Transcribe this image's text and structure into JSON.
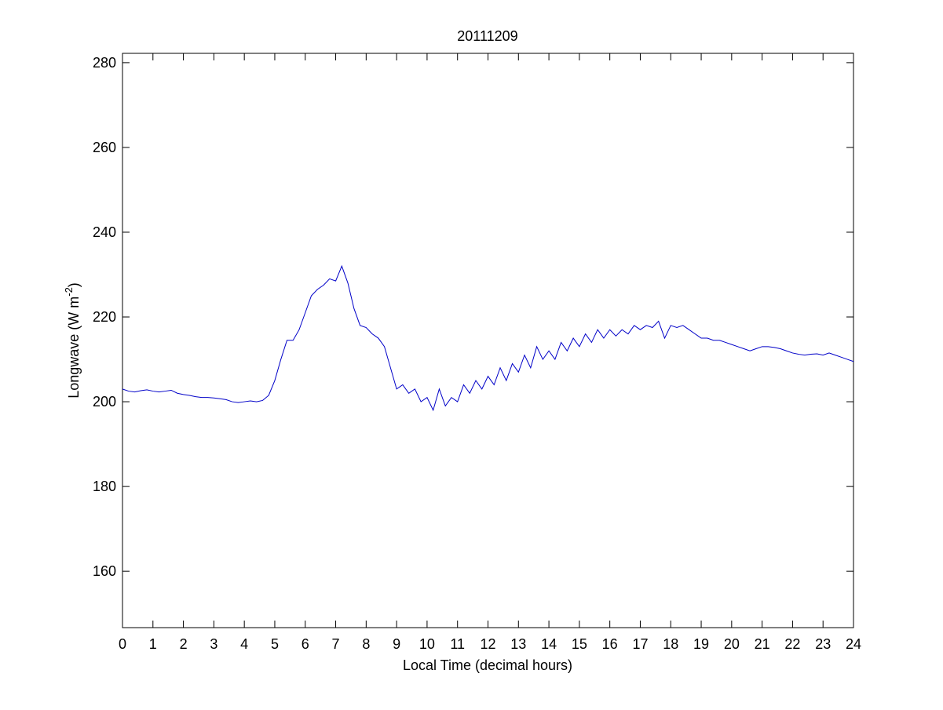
{
  "chart_data": {
    "type": "line",
    "title": "20111209",
    "xlabel": "Local Time (decimal hours)",
    "ylabel": [
      "Longwave (W m",
      "-2",
      ")"
    ],
    "x": [
      0,
      0.2,
      0.4,
      0.6,
      0.8,
      1,
      1.2,
      1.4,
      1.6,
      1.8,
      2,
      2.2,
      2.4,
      2.6,
      2.8,
      3,
      3.2,
      3.4,
      3.6,
      3.8,
      4,
      4.2,
      4.4,
      4.6,
      4.8,
      5,
      5.2,
      5.4,
      5.6,
      5.8,
      6,
      6.2,
      6.4,
      6.6,
      6.8,
      7,
      7.2,
      7.4,
      7.6,
      7.8,
      8,
      8.2,
      8.4,
      8.6,
      8.8,
      9,
      9.2,
      9.4,
      9.6,
      9.8,
      10,
      10.2,
      10.4,
      10.6,
      10.8,
      11,
      11.2,
      11.4,
      11.6,
      11.8,
      12,
      12.2,
      12.4,
      12.6,
      12.8,
      13,
      13.2,
      13.4,
      13.6,
      13.8,
      14,
      14.2,
      14.4,
      14.6,
      14.8,
      15,
      15.2,
      15.4,
      15.6,
      15.8,
      16,
      16.2,
      16.4,
      16.6,
      16.8,
      17,
      17.2,
      17.4,
      17.6,
      17.8,
      18,
      18.2,
      18.4,
      18.6,
      18.8,
      19,
      19.2,
      19.4,
      19.6,
      19.8,
      20,
      20.2,
      20.4,
      20.6,
      20.8,
      21,
      21.2,
      21.4,
      21.6,
      21.8,
      22,
      22.2,
      22.4,
      22.6,
      22.8,
      23,
      23.2,
      23.4,
      23.6,
      23.8,
      24
    ],
    "series": [
      {
        "color": "#0000c8",
        "values": [
          203,
          202.5,
          202.3,
          202.6,
          202.8,
          202.5,
          202.3,
          202.5,
          202.7,
          202,
          201.7,
          201.5,
          201.2,
          201,
          201,
          200.9,
          200.7,
          200.5,
          200,
          199.8,
          200,
          200.2,
          200,
          200.3,
          201.5,
          205,
          210,
          214.5,
          214.5,
          217,
          221,
          225,
          226.5,
          227.5,
          229,
          228.5,
          232,
          228,
          222,
          218,
          217.5,
          216,
          215,
          213,
          208,
          203,
          204,
          202,
          203,
          200,
          201,
          198,
          203,
          199,
          201,
          200,
          204,
          202,
          205,
          203,
          206,
          204,
          208,
          205,
          209,
          207,
          211,
          208,
          213,
          210,
          212,
          210,
          214,
          212,
          215,
          213,
          216,
          214,
          217,
          215,
          217,
          215.5,
          217,
          216,
          218,
          217,
          218,
          217.5,
          219,
          215,
          218,
          217.5,
          218,
          217,
          216,
          215,
          215,
          214.5,
          214.5,
          214,
          213.5,
          213,
          212.5,
          212,
          212.5,
          213,
          213,
          212.8,
          212.5,
          212,
          211.5,
          211.2,
          211,
          211.2,
          211.3,
          211,
          211.5,
          211,
          210.5,
          210,
          209.5
        ]
      }
    ],
    "xlim": [
      0,
      24
    ],
    "xticks": [
      0,
      1,
      2,
      3,
      4,
      5,
      6,
      7,
      8,
      9,
      10,
      11,
      12,
      13,
      14,
      15,
      16,
      17,
      18,
      19,
      20,
      21,
      22,
      23,
      24
    ],
    "ylim": [
      146.7,
      282.2
    ],
    "yticks": [
      160,
      180,
      200,
      220,
      240,
      260,
      280
    ]
  }
}
